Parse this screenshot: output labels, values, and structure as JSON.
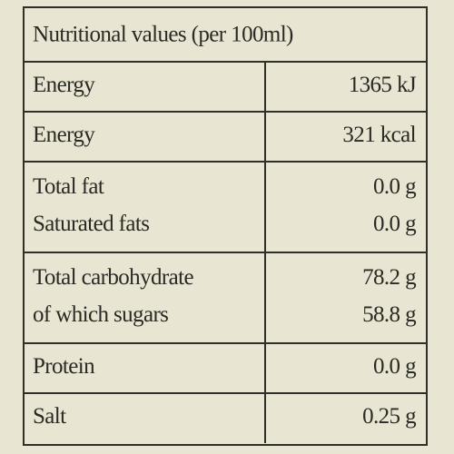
{
  "table": {
    "title": "Nutritional values (per 100ml)",
    "rows": [
      [
        [
          "Energy",
          "1365 kJ"
        ]
      ],
      [
        [
          "Energy",
          "321 kcal"
        ]
      ],
      [
        [
          "Total fat",
          "0.0 g"
        ],
        [
          "Saturated fats",
          "0.0 g"
        ]
      ],
      [
        [
          "Total carbohydrate",
          "78.2 g"
        ],
        [
          "of which sugars",
          "58.8 g"
        ]
      ],
      [
        [
          "Protein",
          "0.0 g"
        ]
      ],
      [
        [
          "Salt",
          "0.25 g"
        ]
      ]
    ]
  }
}
